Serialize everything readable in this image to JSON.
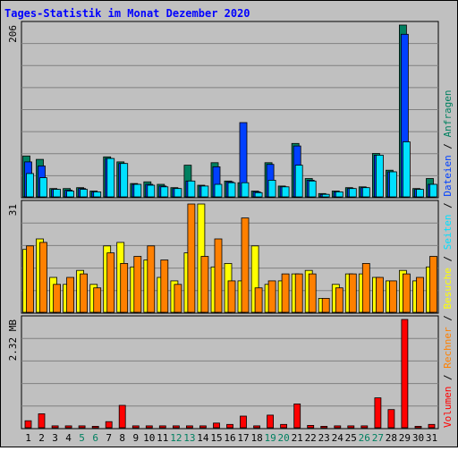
{
  "chart_data": {
    "type": "bar",
    "title": "Tages-Statistik im Monat Dezember 2020",
    "days": [
      "1",
      "2",
      "3",
      "4",
      "5",
      "6",
      "7",
      "8",
      "9",
      "10",
      "11",
      "12",
      "13",
      "14",
      "15",
      "16",
      "17",
      "18",
      "19",
      "20",
      "21",
      "22",
      "23",
      "24",
      "25",
      "26",
      "27",
      "28",
      "29",
      "30",
      "31"
    ],
    "weekend_days": [
      "5",
      "6",
      "12",
      "13",
      "19",
      "20",
      "26",
      "27"
    ],
    "colors": {
      "background": "#c0c0c0",
      "grid": "#808080",
      "frame": "#000000",
      "title": "#0000ff",
      "day_label": "#000000",
      "weekend_label": "#008060",
      "anfragen": "#008060",
      "dateien": "#0040ff",
      "seiten": "#00e0ff",
      "besuche": "#ffff00",
      "rechner": "#ff8000",
      "volumen": "#ff0000"
    },
    "panels": [
      {
        "name": "requests",
        "scale_label": "206",
        "ylim": [
          0,
          206
        ],
        "series": [
          {
            "name": "Anfragen",
            "values": [
              49,
              45,
              10,
              10,
              11,
              7,
              48,
              42,
              16,
              18,
              15,
              11,
              38,
              14,
              41,
              19,
              17,
              7,
              41,
              13,
              64,
              22,
              4,
              7,
              11,
              12,
              52,
              32,
              206,
              10,
              22
            ]
          },
          {
            "name": "Dateien",
            "values": [
              42,
              37,
              9,
              8,
              10,
              6,
              46,
              40,
              15,
              15,
              13,
              10,
              19,
              13,
              36,
              18,
              89,
              6,
              39,
              12,
              61,
              20,
              3,
              6,
              10,
              11,
              50,
              30,
              195,
              9,
              15
            ]
          },
          {
            "name": "Seiten",
            "values": [
              28,
              23,
              9,
              7,
              9,
              6,
              46,
              40,
              15,
              14,
              12,
              10,
              19,
              13,
              15,
              17,
              17,
              5,
              20,
              12,
              38,
              19,
              3,
              6,
              10,
              11,
              50,
              30,
              66,
              9,
              15
            ]
          }
        ]
      },
      {
        "name": "visits",
        "scale_label": "31",
        "ylim": [
          0,
          31
        ],
        "series": [
          {
            "name": "Besuche",
            "values": [
              18,
              21,
              10,
              8,
              12,
              8,
              19,
              20,
              13,
              15,
              10,
              9,
              17,
              31,
              13,
              14,
              9,
              19,
              8,
              9,
              11,
              12,
              4,
              8,
              11,
              11,
              10,
              9,
              12,
              9,
              13
            ]
          },
          {
            "name": "Rechner",
            "values": [
              19,
              20,
              8,
              10,
              11,
              7,
              17,
              14,
              16,
              19,
              15,
              8,
              31,
              16,
              21,
              9,
              27,
              7,
              9,
              11,
              11,
              11,
              4,
              7,
              11,
              14,
              10,
              9,
              11,
              10,
              16
            ]
          }
        ]
      },
      {
        "name": "volume",
        "scale_label": "2.32 MB",
        "ylim": [
          0,
          2.32
        ],
        "series": [
          {
            "name": "Volumen",
            "values": [
              0.15,
              0.3,
              0.04,
              0.04,
              0.04,
              0.03,
              0.13,
              0.48,
              0.04,
              0.04,
              0.04,
              0.04,
              0.04,
              0.04,
              0.1,
              0.07,
              0.25,
              0.04,
              0.27,
              0.07,
              0.51,
              0.05,
              0.03,
              0.04,
              0.04,
              0.04,
              0.64,
              0.39,
              2.32,
              0.03,
              0.07
            ]
          }
        ]
      }
    ],
    "legend": [
      "Volumen",
      "Rechner",
      "Besuche",
      "Seiten",
      "Dateien",
      "Anfragen"
    ],
    "legend_separator": "/",
    "grid": true
  }
}
